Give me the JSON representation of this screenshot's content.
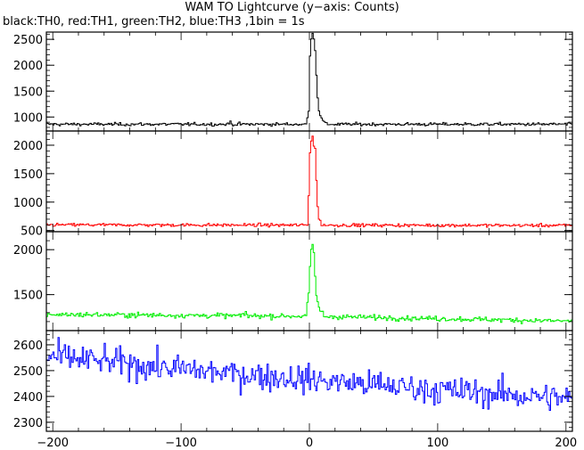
{
  "chart_data": {
    "type": "line",
    "title": "WAM TO Lightcurve (y−axis: Counts)",
    "subtitle": "black:TH0, red:TH1, green:TH2, blue:TH3 ,1bin = 1s",
    "x_range": [
      -205,
      205
    ],
    "x_ticks": [
      -200,
      -100,
      0,
      100,
      200
    ],
    "x_tick_labels": [
      "−200",
      "−100",
      "0",
      "100",
      "200"
    ],
    "bin_seconds": 1,
    "panels": [
      {
        "name": "TH0",
        "color": "#000000",
        "ylim": [
          730,
          2640
        ],
        "yticks": [
          1000,
          1500,
          2000,
          2500
        ],
        "baseline": [
          [
            -205,
            860
          ],
          [
            205,
            860
          ]
        ],
        "noise_sd": 22,
        "spikes": [
          [
            -62,
            70
          ]
        ],
        "burst": [
          [
            -3,
            860
          ],
          [
            -1,
            1100
          ],
          [
            0,
            2200
          ],
          [
            1,
            2550
          ],
          [
            2,
            2600
          ],
          [
            3,
            2550
          ],
          [
            4,
            2300
          ],
          [
            5,
            1800
          ],
          [
            6,
            1400
          ],
          [
            7,
            1150
          ],
          [
            9,
            950
          ],
          [
            12,
            880
          ]
        ]
      },
      {
        "name": "TH1",
        "color": "#ff0000",
        "ylim": [
          480,
          2250
        ],
        "yticks": [
          500,
          1000,
          1500,
          2000
        ],
        "baseline": [
          [
            -205,
            600
          ],
          [
            205,
            590
          ]
        ],
        "noise_sd": 20,
        "spikes": [],
        "burst": [
          [
            -2,
            600
          ],
          [
            -1,
            1100
          ],
          [
            0,
            1900
          ],
          [
            1,
            2100
          ],
          [
            2,
            2150
          ],
          [
            3,
            2000
          ],
          [
            4,
            1950
          ],
          [
            5,
            1400
          ],
          [
            6,
            900
          ],
          [
            7,
            700
          ],
          [
            9,
            620
          ]
        ]
      },
      {
        "name": "TH2",
        "color": "#00ee00",
        "ylim": [
          1100,
          2200
        ],
        "yticks": [
          1500,
          2000
        ],
        "baseline": [
          [
            -205,
            1280
          ],
          [
            0,
            1260
          ],
          [
            205,
            1205
          ]
        ],
        "noise_sd": 20,
        "spikes": [
          [
            -50,
            60
          ]
        ],
        "burst": [
          [
            -3,
            1270
          ],
          [
            -1,
            1500
          ],
          [
            0,
            1800
          ],
          [
            1,
            1980
          ],
          [
            2,
            2050
          ],
          [
            3,
            1950
          ],
          [
            4,
            1700
          ],
          [
            5,
            1500
          ],
          [
            7,
            1350
          ],
          [
            10,
            1280
          ]
        ]
      },
      {
        "name": "TH3",
        "color": "#0000ff",
        "ylim": [
          2265,
          2655
        ],
        "yticks": [
          2300,
          2400,
          2500,
          2600
        ],
        "baseline": [
          [
            -205,
            2555
          ],
          [
            -180,
            2545
          ],
          [
            -100,
            2505
          ],
          [
            0,
            2465
          ],
          [
            100,
            2425
          ],
          [
            205,
            2390
          ]
        ],
        "noise_sd": 38,
        "spikes": [],
        "burst": []
      }
    ]
  }
}
